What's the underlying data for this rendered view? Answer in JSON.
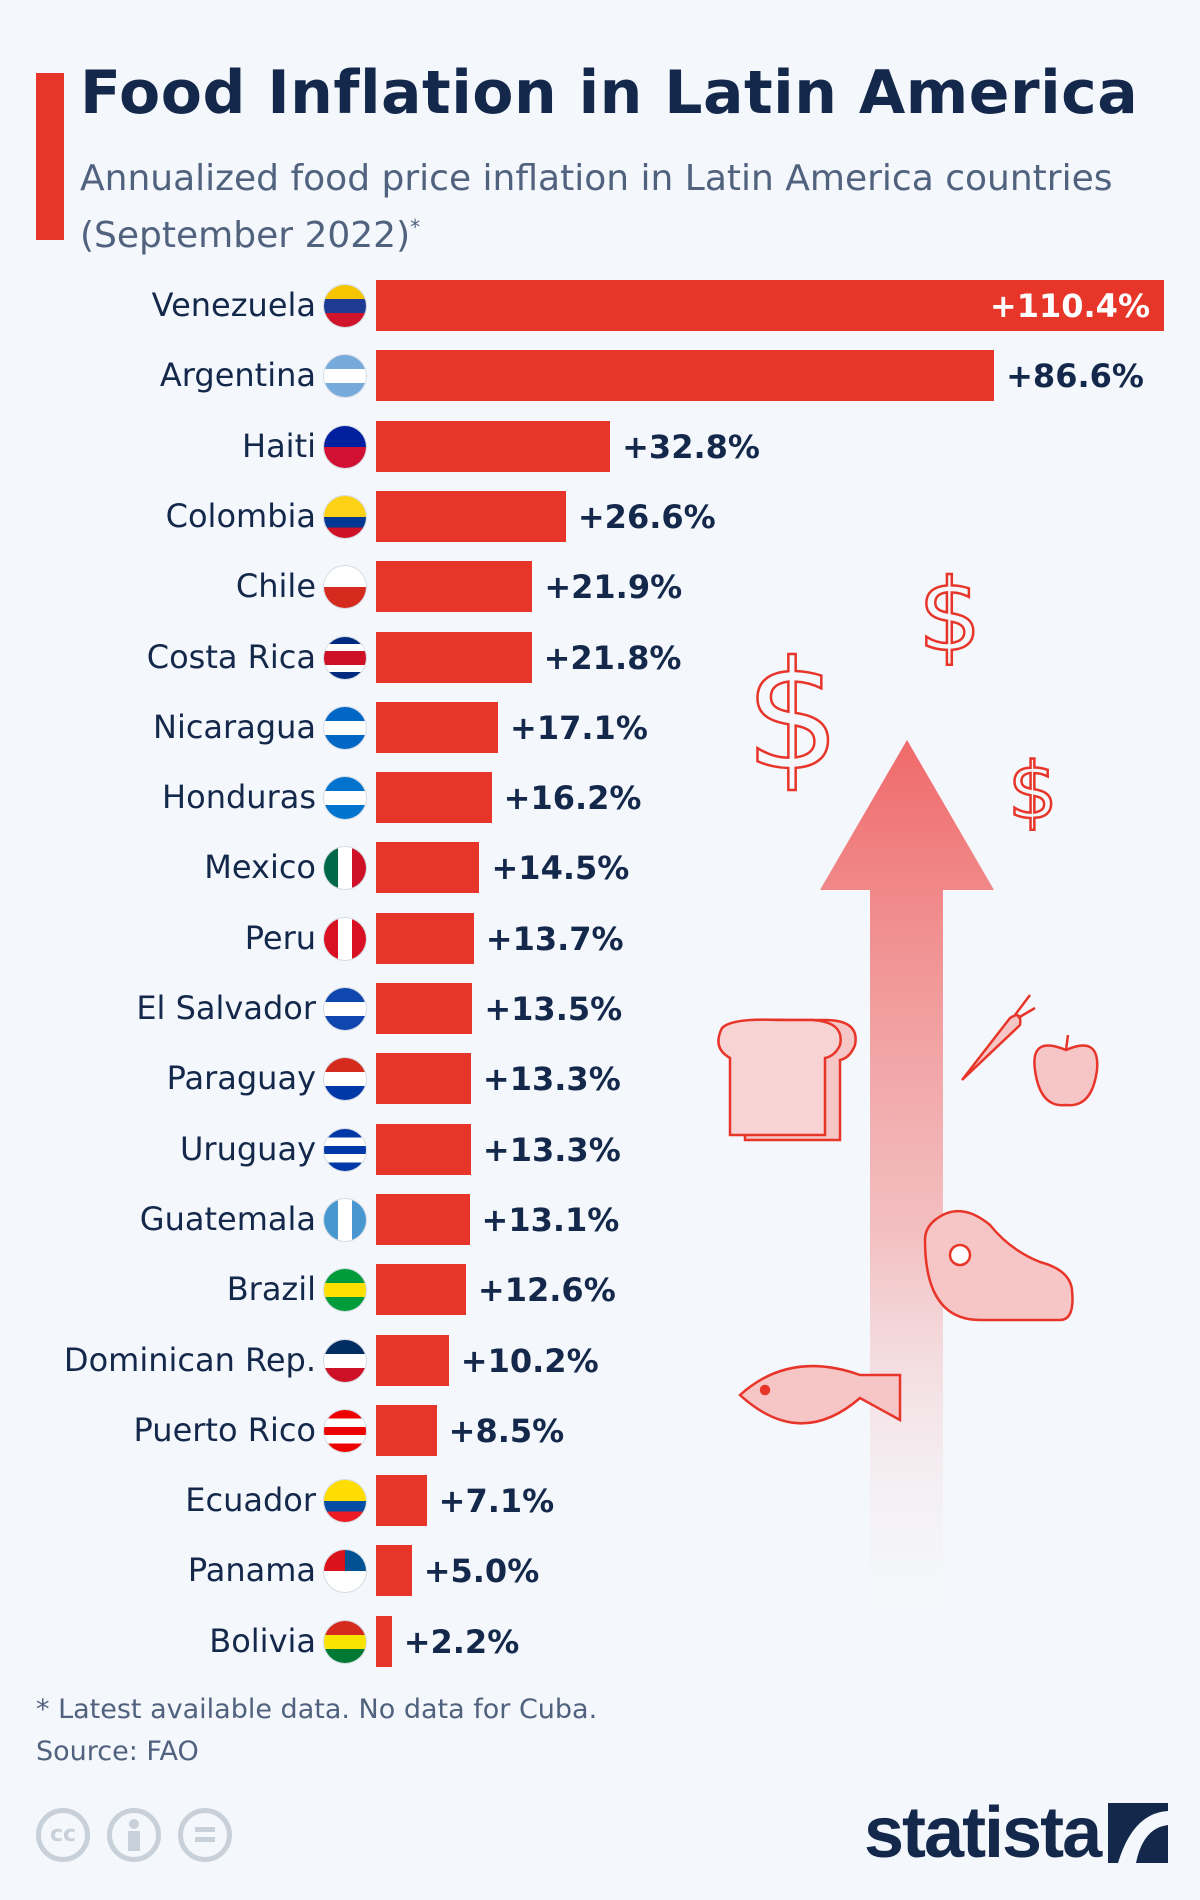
{
  "header": {
    "title": "Food Inflation in Latin America",
    "subtitle": "Annualized food price inflation in Latin America countries (September 2022)",
    "subtitle_mark": "*"
  },
  "chart_data": {
    "type": "bar",
    "orientation": "horizontal",
    "title": "Food Inflation in Latin America",
    "subtitle": "Annualized food price inflation in Latin America countries (September 2022)*",
    "unit": "%",
    "bar_color": "#e8352a",
    "categories": [
      "Venezuela",
      "Argentina",
      "Haiti",
      "Colombia",
      "Chile",
      "Costa Rica",
      "Nicaragua",
      "Honduras",
      "Mexico",
      "Peru",
      "El Salvador",
      "Paraguay",
      "Uruguay",
      "Guatemala",
      "Brazil",
      "Dominican Rep.",
      "Puerto Rico",
      "Ecuador",
      "Panama",
      "Bolivia"
    ],
    "values": [
      110.4,
      86.6,
      32.8,
      26.6,
      21.9,
      21.8,
      17.1,
      16.2,
      14.5,
      13.7,
      13.5,
      13.3,
      13.3,
      13.1,
      12.6,
      10.2,
      8.5,
      7.1,
      5.0,
      2.2
    ],
    "labels": [
      "+110.4%",
      "+86.6%",
      "+32.8%",
      "+26.6%",
      "+21.9%",
      "+21.8%",
      "+17.1%",
      "+16.2%",
      "+14.5%",
      "+13.7%",
      "+13.5%",
      "+13.3%",
      "+13.3%",
      "+13.1%",
      "+12.6%",
      "+10.2%",
      "+8.5%",
      "+7.1%",
      "+5.0%",
      "+2.2%"
    ],
    "flags": [
      [
        "#f7c500",
        "#1f3a93",
        "#cf142b"
      ],
      [
        "#75aadb",
        "#ffffff",
        "#75aadb"
      ],
      [
        "#00209f",
        "#d21034"
      ],
      [
        "#fcd116",
        "#fcd116",
        "#003893",
        "#ce1126"
      ],
      [
        "#ffffff",
        "#d52b1e"
      ],
      [
        "#002b7f",
        "#ffffff",
        "#ce1126",
        "#ce1126",
        "#ffffff",
        "#002b7f"
      ],
      [
        "#0067c6",
        "#ffffff",
        "#0067c6"
      ],
      [
        "#0073cf",
        "#ffffff",
        "#0073cf"
      ],
      [
        "#006847",
        "#ffffff",
        "#ce1126"
      ],
      [
        "#d91023",
        "#ffffff",
        "#d91023"
      ],
      [
        "#0f47af",
        "#ffffff",
        "#0f47af"
      ],
      [
        "#d52b1e",
        "#ffffff",
        "#0038a8"
      ],
      [
        "#0038a8",
        "#ffffff",
        "#0038a8",
        "#ffffff",
        "#0038a8"
      ],
      [
        "#4997d0",
        "#ffffff",
        "#4997d0"
      ],
      [
        "#009c3b",
        "#fedf00",
        "#009c3b"
      ],
      [
        "#002d62",
        "#ffffff",
        "#ce1126"
      ],
      [
        "#ed0000",
        "#ffffff",
        "#ed0000",
        "#ffffff",
        "#ed0000"
      ],
      [
        "#ffdd00",
        "#ffdd00",
        "#034ea2",
        "#ed1c24"
      ],
      [
        "#ffffff",
        "#da121a",
        "#005293",
        "#ffffff"
      ],
      [
        "#d52b1e",
        "#f9e300",
        "#007934"
      ]
    ],
    "flag_direction": [
      "h",
      "h",
      "h",
      "h",
      "h",
      "h",
      "h",
      "h",
      "v",
      "v",
      "h",
      "h",
      "h",
      "v",
      "h",
      "h",
      "h",
      "h",
      "q",
      "h"
    ]
  },
  "footer": {
    "note": "* Latest available data. No data for Cuba.",
    "source": "Source: FAO",
    "license_icons": [
      "cc-icon",
      "attribution-icon",
      "no-derivatives-icon"
    ],
    "cc_text": "cc",
    "logo": "statista"
  }
}
